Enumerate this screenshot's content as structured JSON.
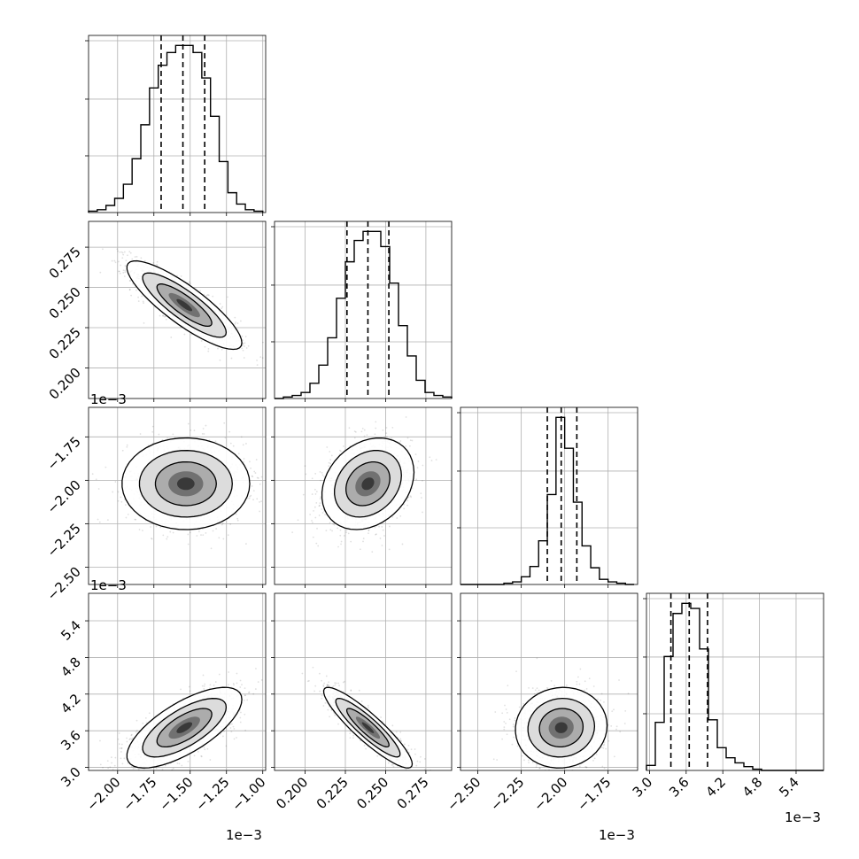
{
  "chart_data": {
    "type": "corner",
    "parameters": 4,
    "grid": true,
    "quantiles": [
      0.16,
      0.5,
      0.84
    ],
    "offset_labels": {
      "x_param0": "1e−3",
      "x_param2": "1e−3",
      "x_param3": "1e−3",
      "y_param2": "1e−3",
      "y_param3": "1e−3"
    },
    "axes": [
      {
        "range": [
          -2.2,
          -0.98
        ],
        "ticks": [
          -2.0,
          -1.75,
          -1.5,
          -1.25,
          -1.0
        ],
        "tick_labels": [
          "−2.00",
          "−1.75",
          "−1.50",
          "−1.25",
          "−1.00"
        ]
      },
      {
        "range": [
          0.181,
          0.291
        ],
        "ticks": [
          0.2,
          0.225,
          0.25,
          0.275
        ],
        "tick_labels": [
          "0.200",
          "0.225",
          "0.250",
          "0.275"
        ]
      },
      {
        "range": [
          -2.6,
          -1.58
        ],
        "ticks": [
          -2.5,
          -2.25,
          -2.0,
          -1.75
        ],
        "tick_labels": [
          "−2.50",
          "−2.25",
          "−2.00",
          "−1.75"
        ]
      },
      {
        "range": [
          2.95,
          5.85
        ],
        "ticks": [
          3.0,
          3.6,
          4.2,
          4.8,
          5.4
        ],
        "tick_labels": [
          "3.0",
          "3.6",
          "4.2",
          "4.8",
          "5.4"
        ]
      }
    ],
    "marginals": [
      {
        "param": 0,
        "quantile_values": [
          -1.7,
          -1.55,
          -1.4
        ],
        "bin_edges": [
          -2.2,
          -2.14,
          -2.08,
          -2.02,
          -1.96,
          -1.9,
          -1.84,
          -1.78,
          -1.72,
          -1.66,
          -1.6,
          -1.54,
          -1.48,
          -1.42,
          -1.36,
          -1.3,
          -1.24,
          -1.18,
          -1.12,
          -1.06,
          -1.0
        ],
        "counts": [
          1,
          2,
          5,
          10,
          20,
          38,
          62,
          88,
          104,
          113,
          118,
          118,
          113,
          95,
          68,
          36,
          14,
          6,
          2,
          1
        ]
      },
      {
        "param": 1,
        "quantile_values": [
          0.226,
          0.239,
          0.252
        ],
        "bin_edges": [
          0.181,
          0.1865,
          0.192,
          0.1975,
          0.203,
          0.2085,
          0.214,
          0.2195,
          0.225,
          0.2305,
          0.236,
          0.2415,
          0.247,
          0.2525,
          0.258,
          0.2635,
          0.269,
          0.2745,
          0.28,
          0.2855,
          0.291
        ],
        "counts": [
          0,
          1,
          2,
          4,
          10,
          22,
          40,
          66,
          90,
          104,
          110,
          110,
          100,
          76,
          48,
          28,
          12,
          4,
          2,
          1
        ]
      },
      {
        "param": 2,
        "quantile_values": [
          -2.1,
          -2.02,
          -1.93
        ],
        "bin_edges": [
          -2.6,
          -2.55,
          -2.5,
          -2.45,
          -2.4,
          -2.35,
          -2.3,
          -2.25,
          -2.2,
          -2.15,
          -2.1,
          -2.05,
          -2.0,
          -1.95,
          -1.9,
          -1.85,
          -1.8,
          -1.75,
          -1.7,
          -1.65,
          -1.6
        ],
        "counts": [
          0,
          0,
          0,
          0,
          0,
          1,
          2,
          6,
          14,
          34,
          70,
          130,
          106,
          64,
          30,
          13,
          4,
          2,
          1,
          0
        ]
      },
      {
        "param": 3,
        "quantile_values": [
          3.35,
          3.65,
          3.95
        ],
        "bin_edges": [
          2.95,
          3.095,
          3.24,
          3.385,
          3.53,
          3.675,
          3.82,
          3.965,
          4.11,
          4.255,
          4.4,
          4.545,
          4.69,
          4.835,
          4.98,
          5.125,
          5.27,
          5.415,
          5.56,
          5.705,
          5.85
        ],
        "counts": [
          4,
          38,
          90,
          124,
          132,
          128,
          96,
          40,
          18,
          10,
          6,
          3,
          1,
          0,
          0,
          0,
          0,
          0,
          0,
          0
        ]
      }
    ],
    "pairs": [
      {
        "x": 0,
        "y": 1,
        "mean": [
          -1.54,
          0.239
        ],
        "sd": [
          0.18,
          0.0125
        ],
        "corr": -0.85
      },
      {
        "x": 0,
        "y": 2,
        "mean": [
          -1.53,
          -2.02
        ],
        "sd": [
          0.2,
          0.12
        ],
        "corr": 0.0
      },
      {
        "x": 1,
        "y": 2,
        "mean": [
          0.239,
          -2.02
        ],
        "sd": [
          0.013,
          0.12
        ],
        "corr": 0.25
      },
      {
        "x": 0,
        "y": 3,
        "mean": [
          -1.54,
          3.65
        ],
        "sd": [
          0.18,
          0.3
        ],
        "corr": 0.7
      },
      {
        "x": 1,
        "y": 3,
        "mean": [
          0.239,
          3.65
        ],
        "sd": [
          0.0125,
          0.3
        ],
        "corr": -0.9
      },
      {
        "x": 2,
        "y": 3,
        "mean": [
          -2.02,
          3.65
        ],
        "sd": [
          0.12,
          0.3
        ],
        "corr": 0.05
      }
    ]
  }
}
